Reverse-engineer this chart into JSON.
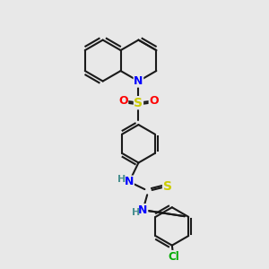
{
  "background_color": "#e8e8e8",
  "line_color": "#1a1a1a",
  "bond_width": 1.5,
  "atom_colors": {
    "N": "#0000ff",
    "O": "#ff0000",
    "S": "#cccc00",
    "Cl": "#00aa00",
    "C": "#1a1a1a"
  },
  "font_size": 8,
  "fig_width": 3.0,
  "fig_height": 3.0,
  "dpi": 100
}
